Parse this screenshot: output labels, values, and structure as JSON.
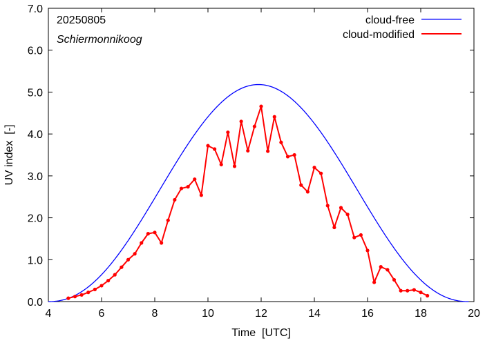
{
  "chart_data": {
    "type": "line",
    "title": "",
    "xlabel": "Time  [UTC]",
    "ylabel": "UV index  [-]",
    "xlim": [
      4,
      20
    ],
    "ylim": [
      0,
      7
    ],
    "x_ticks": [
      "4",
      "6",
      "8",
      "10",
      "12",
      "14",
      "16",
      "18",
      "20"
    ],
    "y_ticks": [
      "0.0",
      "1.0",
      "2.0",
      "3.0",
      "4.0",
      "5.0",
      "6.0",
      "7.0"
    ],
    "grid": false,
    "legend_position": "top-right",
    "annotations": {
      "date": "20250805",
      "location": "Schiermonnikoog"
    },
    "series": [
      {
        "name": "cloud-free",
        "color": "#0000ff",
        "peak": 5.18,
        "peak_time": 11.65,
        "start": 4.0,
        "end": 19.8
      },
      {
        "name": "cloud-modified",
        "color": "#ff0000",
        "x": [
          4.75,
          5.0,
          5.25,
          5.5,
          5.75,
          6.0,
          6.25,
          6.5,
          6.75,
          7.0,
          7.25,
          7.5,
          7.75,
          8.0,
          8.25,
          8.5,
          8.75,
          9.0,
          9.25,
          9.5,
          9.75,
          10.0,
          10.25,
          10.5,
          10.75,
          11.0,
          11.25,
          11.5,
          11.75,
          12.0,
          12.25,
          12.5,
          12.75,
          13.0,
          13.25,
          13.5,
          13.75,
          14.0,
          14.25,
          14.5,
          14.75,
          15.0,
          15.25,
          15.5,
          15.75,
          16.0,
          16.25,
          16.5,
          16.75,
          17.0,
          17.25,
          17.5,
          17.75,
          18.0,
          18.25
        ],
        "y": [
          0.08,
          0.12,
          0.16,
          0.22,
          0.29,
          0.38,
          0.5,
          0.64,
          0.82,
          1.0,
          1.14,
          1.4,
          1.62,
          1.65,
          1.4,
          1.94,
          2.43,
          2.7,
          2.74,
          2.92,
          2.54,
          3.72,
          3.64,
          3.27,
          4.04,
          3.23,
          4.3,
          3.6,
          4.18,
          4.66,
          3.59,
          4.41,
          3.8,
          3.46,
          3.5,
          2.78,
          2.62,
          3.2,
          3.06,
          2.29,
          1.77,
          2.24,
          2.08,
          1.53,
          1.59,
          1.22,
          0.46,
          0.83,
          0.76,
          0.52,
          0.26,
          0.26,
          0.28,
          0.22,
          0.14
        ]
      }
    ]
  }
}
